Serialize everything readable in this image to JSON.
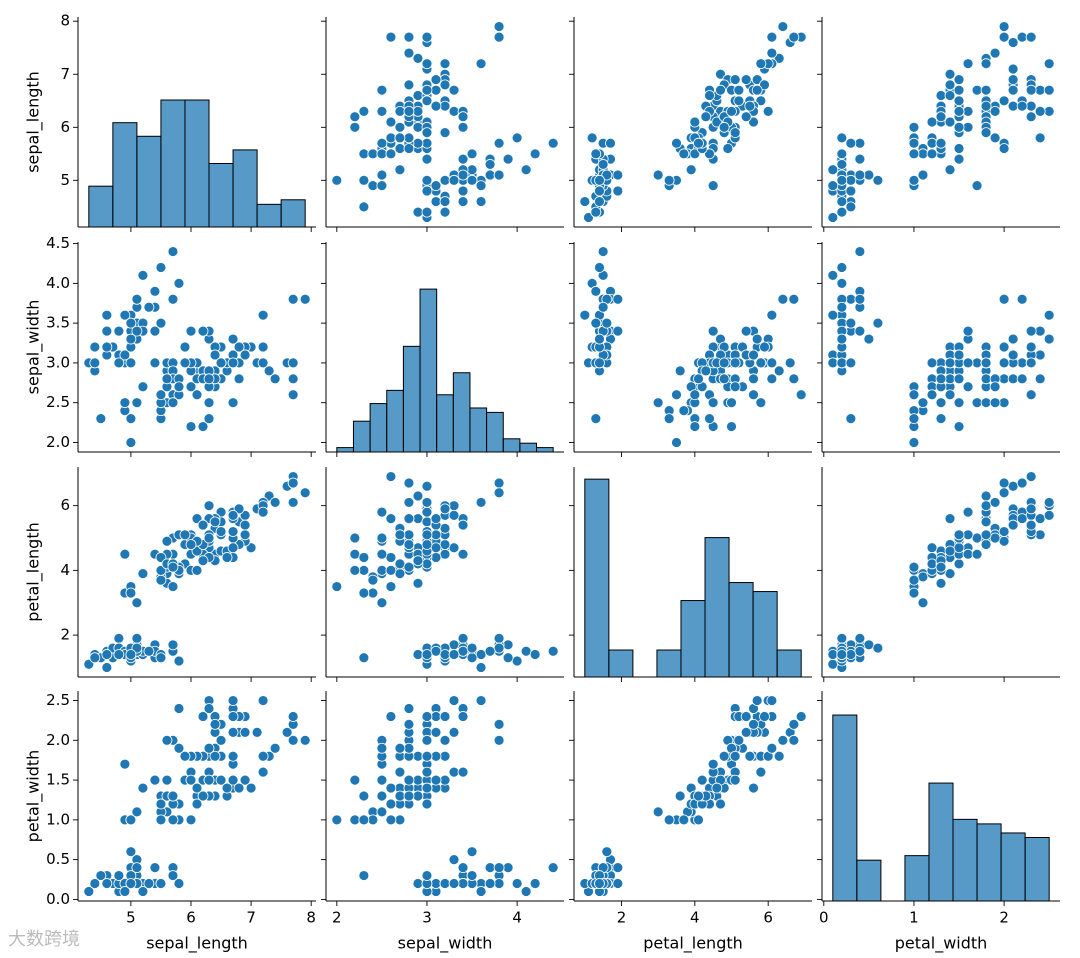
{
  "chart_data": {
    "type": "pairplot",
    "color": "#1f77b4",
    "watermark": "大数跨境",
    "variables": [
      "sepal_length",
      "sepal_width",
      "petal_length",
      "petal_width"
    ],
    "data": {
      "sepal_length": [
        5.1,
        4.9,
        4.7,
        4.6,
        5.0,
        5.4,
        4.6,
        5.0,
        4.4,
        4.9,
        5.4,
        4.8,
        4.8,
        4.3,
        5.8,
        5.7,
        5.4,
        5.1,
        5.7,
        5.1,
        5.4,
        5.1,
        4.6,
        5.1,
        4.8,
        5.0,
        5.0,
        5.2,
        5.2,
        4.7,
        4.8,
        5.4,
        5.2,
        5.5,
        4.9,
        5.0,
        5.5,
        4.9,
        4.4,
        5.1,
        5.0,
        4.5,
        4.4,
        5.0,
        5.1,
        4.8,
        5.1,
        4.6,
        5.3,
        5.0,
        7.0,
        6.4,
        6.9,
        5.5,
        6.5,
        5.7,
        6.3,
        4.9,
        6.6,
        5.2,
        5.0,
        5.9,
        6.0,
        6.1,
        5.6,
        6.7,
        5.6,
        5.8,
        6.2,
        5.6,
        5.9,
        6.1,
        6.3,
        6.1,
        6.4,
        6.6,
        6.8,
        6.7,
        6.0,
        5.7,
        5.5,
        5.5,
        5.8,
        6.0,
        5.4,
        6.0,
        6.7,
        6.3,
        5.6,
        5.5,
        5.5,
        6.1,
        5.8,
        5.0,
        5.6,
        5.7,
        5.7,
        6.2,
        5.1,
        5.7,
        6.3,
        5.8,
        7.1,
        6.3,
        6.5,
        7.6,
        4.9,
        7.3,
        6.7,
        7.2,
        6.5,
        6.4,
        6.8,
        5.7,
        5.8,
        6.4,
        6.5,
        7.7,
        7.7,
        6.0,
        6.9,
        5.6,
        7.7,
        6.3,
        6.7,
        7.2,
        6.2,
        6.1,
        6.4,
        7.2,
        7.4,
        7.9,
        6.4,
        6.3,
        6.1,
        7.7,
        6.3,
        6.4,
        6.0,
        6.9,
        6.7,
        6.9,
        5.8,
        6.8,
        6.7,
        6.7,
        6.3,
        6.5,
        6.2,
        5.9
      ],
      "sepal_width": [
        3.5,
        3.0,
        3.2,
        3.1,
        3.6,
        3.9,
        3.4,
        3.4,
        2.9,
        3.1,
        3.7,
        3.4,
        3.0,
        3.0,
        4.0,
        4.4,
        3.9,
        3.5,
        3.8,
        3.8,
        3.4,
        3.7,
        3.6,
        3.3,
        3.4,
        3.0,
        3.4,
        3.5,
        3.4,
        3.2,
        3.1,
        3.4,
        4.1,
        4.2,
        3.1,
        3.2,
        3.5,
        3.6,
        3.0,
        3.4,
        3.5,
        2.3,
        3.2,
        3.5,
        3.8,
        3.0,
        3.8,
        3.2,
        3.7,
        3.3,
        3.2,
        3.2,
        3.1,
        2.3,
        2.8,
        2.8,
        3.3,
        2.4,
        2.9,
        2.7,
        2.0,
        3.0,
        2.2,
        2.9,
        2.9,
        3.1,
        3.0,
        2.7,
        2.2,
        2.5,
        3.2,
        2.8,
        2.5,
        2.8,
        2.9,
        3.0,
        2.8,
        3.0,
        2.9,
        2.6,
        2.4,
        2.4,
        2.7,
        2.7,
        3.0,
        3.4,
        3.1,
        2.3,
        3.0,
        2.5,
        2.6,
        3.0,
        2.6,
        2.3,
        2.7,
        3.0,
        2.9,
        2.9,
        2.5,
        2.8,
        3.3,
        2.7,
        3.0,
        2.9,
        3.0,
        3.0,
        2.5,
        2.9,
        2.5,
        3.6,
        3.2,
        2.7,
        3.0,
        2.5,
        2.8,
        3.2,
        3.0,
        3.8,
        2.6,
        2.2,
        3.2,
        2.8,
        2.8,
        2.7,
        3.3,
        3.2,
        2.8,
        3.0,
        2.8,
        3.0,
        2.8,
        3.8,
        2.8,
        2.8,
        2.6,
        3.0,
        3.4,
        3.1,
        3.0,
        3.1,
        3.1,
        3.1,
        2.7,
        3.2,
        3.3,
        3.0,
        2.5,
        3.0,
        3.4,
        3.0
      ],
      "petal_length": [
        1.4,
        1.4,
        1.3,
        1.5,
        1.4,
        1.7,
        1.4,
        1.5,
        1.4,
        1.5,
        1.5,
        1.6,
        1.4,
        1.1,
        1.2,
        1.5,
        1.3,
        1.4,
        1.7,
        1.5,
        1.7,
        1.5,
        1.0,
        1.7,
        1.9,
        1.6,
        1.6,
        1.5,
        1.4,
        1.6,
        1.6,
        1.5,
        1.5,
        1.4,
        1.5,
        1.2,
        1.3,
        1.4,
        1.3,
        1.5,
        1.3,
        1.3,
        1.3,
        1.6,
        1.9,
        1.4,
        1.6,
        1.4,
        1.5,
        1.4,
        4.7,
        4.5,
        4.9,
        4.0,
        4.6,
        4.5,
        4.7,
        3.3,
        4.6,
        3.9,
        3.5,
        4.2,
        4.0,
        4.7,
        3.6,
        4.4,
        4.5,
        4.1,
        4.5,
        3.9,
        4.8,
        4.0,
        4.9,
        4.7,
        4.3,
        4.4,
        4.8,
        5.0,
        4.5,
        3.5,
        3.8,
        3.7,
        3.9,
        5.1,
        4.5,
        4.5,
        4.7,
        4.4,
        4.1,
        4.0,
        4.4,
        4.6,
        4.0,
        3.3,
        4.2,
        4.2,
        4.2,
        4.3,
        3.0,
        4.1,
        6.0,
        5.1,
        5.9,
        5.6,
        5.8,
        6.6,
        4.5,
        6.3,
        5.8,
        6.1,
        5.1,
        5.3,
        5.5,
        5.0,
        5.1,
        5.3,
        5.5,
        6.7,
        6.9,
        5.0,
        5.7,
        4.9,
        6.7,
        4.9,
        5.7,
        6.0,
        4.8,
        4.9,
        5.6,
        5.8,
        6.1,
        6.4,
        5.6,
        5.1,
        5.6,
        6.1,
        5.6,
        5.5,
        4.8,
        5.4,
        5.6,
        5.1,
        5.1,
        5.9,
        5.7,
        5.2,
        5.0,
        5.2,
        5.4,
        5.1
      ],
      "petal_width": [
        0.2,
        0.2,
        0.2,
        0.2,
        0.2,
        0.4,
        0.3,
        0.2,
        0.2,
        0.1,
        0.2,
        0.2,
        0.1,
        0.1,
        0.2,
        0.4,
        0.4,
        0.3,
        0.3,
        0.3,
        0.2,
        0.4,
        0.2,
        0.5,
        0.2,
        0.2,
        0.4,
        0.2,
        0.2,
        0.2,
        0.2,
        0.4,
        0.1,
        0.2,
        0.2,
        0.2,
        0.2,
        0.1,
        0.2,
        0.2,
        0.3,
        0.3,
        0.2,
        0.6,
        0.4,
        0.3,
        0.2,
        0.2,
        0.2,
        0.2,
        1.4,
        1.5,
        1.5,
        1.3,
        1.5,
        1.3,
        1.6,
        1.0,
        1.3,
        1.4,
        1.0,
        1.5,
        1.0,
        1.4,
        1.3,
        1.4,
        1.5,
        1.0,
        1.5,
        1.1,
        1.8,
        1.3,
        1.5,
        1.2,
        1.3,
        1.4,
        1.4,
        1.7,
        1.5,
        1.0,
        1.1,
        1.0,
        1.2,
        1.6,
        1.5,
        1.6,
        1.5,
        1.3,
        1.3,
        1.3,
        1.2,
        1.4,
        1.2,
        1.0,
        1.3,
        1.2,
        1.3,
        1.3,
        1.1,
        1.3,
        2.5,
        1.9,
        2.1,
        1.8,
        2.2,
        2.1,
        1.7,
        1.8,
        1.8,
        2.5,
        2.0,
        1.9,
        2.1,
        2.0,
        2.4,
        2.3,
        1.8,
        2.2,
        2.3,
        1.5,
        2.3,
        2.0,
        2.0,
        1.8,
        2.1,
        1.8,
        1.8,
        1.8,
        2.1,
        1.6,
        1.9,
        2.0,
        2.2,
        1.5,
        1.4,
        2.3,
        2.4,
        1.8,
        1.8,
        2.1,
        2.4,
        2.3,
        1.9,
        2.3,
        2.5,
        2.3,
        1.9,
        2.0,
        2.3,
        1.8
      ]
    },
    "axes": [
      {
        "lim": [
          4.12,
          8.08
        ],
        "xticks": [
          5,
          6,
          7,
          8
        ],
        "yticks": [
          5,
          6,
          7,
          8
        ]
      },
      {
        "lim": [
          1.88,
          4.52
        ],
        "xticks": [
          2,
          3,
          4
        ],
        "yticks": [
          {
            "value": 2,
            "label": "2.0"
          },
          2.5,
          {
            "value": 3,
            "label": "3.0"
          },
          3.5,
          {
            "value": 4,
            "label": "4.0"
          },
          4.5
        ]
      },
      {
        "lim": [
          0.705,
          7.195
        ],
        "xticks": [
          2,
          4,
          6
        ],
        "yticks": [
          2,
          4,
          6
        ]
      },
      {
        "lim": [
          -0.02,
          2.62
        ],
        "xticks": [
          0,
          1,
          2
        ],
        "yticks": [
          {
            "value": 0,
            "label": "0.0"
          },
          0.5,
          {
            "value": 1,
            "label": "1.0"
          },
          1.5,
          {
            "value": 2,
            "label": "2.0"
          },
          2.5
        ]
      }
    ],
    "histograms": [
      {
        "bins": [
          4.3,
          4.7,
          5.1,
          5.5,
          5.9,
          6.3,
          6.7,
          7.1,
          7.5,
          7.9
        ],
        "counts": [
          9,
          23,
          20,
          28,
          28,
          14,
          17,
          5,
          6
        ],
        "ylim": [
          0,
          46.3
        ]
      },
      {
        "bins": [
          2.0,
          2.1846,
          2.3692,
          2.5538,
          2.7385,
          2.9231,
          3.1077,
          3.2923,
          3.4769,
          3.6615,
          3.8462,
          4.0308,
          4.2154,
          4.4
        ],
        "counts": [
          1,
          7,
          11,
          14,
          24,
          37,
          13,
          18,
          10,
          9,
          3,
          2,
          1
        ],
        "ylim": [
          0,
          47.7
        ]
      },
      {
        "bins": [
          1.0,
          1.6556,
          2.3111,
          2.9667,
          3.6222,
          4.2778,
          4.9333,
          5.5889,
          6.2444,
          6.9
        ],
        "counts": [
          44,
          6,
          0,
          6,
          17,
          31,
          21,
          19,
          6
        ],
        "ylim": [
          0,
          46.7
        ]
      },
      {
        "bins": [
          0.1,
          0.3667,
          0.6333,
          0.9,
          1.1667,
          1.4333,
          1.7,
          1.9667,
          2.2333,
          2.5
        ],
        "counts": [
          41,
          9,
          0,
          10,
          26,
          18,
          17,
          15,
          14
        ],
        "ylim": [
          0,
          46.3
        ]
      }
    ]
  }
}
